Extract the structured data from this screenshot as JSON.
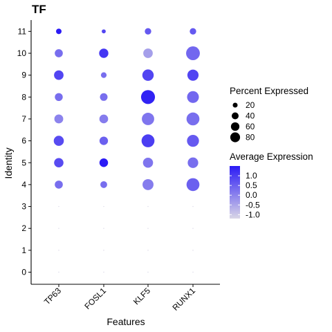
{
  "chart_data": {
    "type": "dotplot",
    "title": "TF",
    "xlabel": "Features",
    "ylabel": "Identity",
    "features": [
      "TP63",
      "FOSL1",
      "KLF5",
      "RUNX1"
    ],
    "identities": [
      "0",
      "1",
      "2",
      "3",
      "4",
      "5",
      "6",
      "7",
      "8",
      "9",
      "10",
      "11"
    ],
    "percent_expressed": [
      [
        1,
        1,
        2,
        1
      ],
      [
        1,
        1,
        2,
        1
      ],
      [
        1,
        1,
        2,
        1
      ],
      [
        1,
        1,
        2,
        1
      ],
      [
        28,
        20,
        52,
        72
      ],
      [
        38,
        32,
        44,
        48
      ],
      [
        44,
        31,
        72,
        62
      ],
      [
        34,
        33,
        66,
        72
      ],
      [
        27,
        25,
        84,
        60
      ],
      [
        39,
        14,
        56,
        54
      ],
      [
        28,
        37,
        39,
        82
      ],
      [
        13,
        7,
        18,
        18
      ]
    ],
    "average_expression": [
      [
        -1.2,
        -1.2,
        -1.2,
        -1.2
      ],
      [
        -1.2,
        -1.2,
        -1.2,
        -1.2
      ],
      [
        -1.2,
        -1.2,
        -1.2,
        -1.2
      ],
      [
        -1.2,
        -1.2,
        -1.2,
        -1.2
      ],
      [
        0.3,
        0.3,
        0.1,
        0.5
      ],
      [
        0.8,
        1.5,
        0.2,
        0.3
      ],
      [
        0.8,
        0.5,
        1.0,
        0.6
      ],
      [
        0.0,
        0.1,
        0.2,
        0.3
      ],
      [
        0.3,
        0.3,
        1.4,
        0.4
      ],
      [
        0.9,
        0.3,
        0.9,
        0.9
      ],
      [
        0.3,
        1.1,
        -0.4,
        0.4
      ],
      [
        1.5,
        0.9,
        0.6,
        0.6
      ]
    ],
    "size_legend": {
      "title": "Percent Expressed",
      "values": [
        20,
        40,
        60,
        80
      ]
    },
    "color_legend": {
      "title": "Average Expression",
      "ticks": [
        1.0,
        0.5,
        0.0,
        -0.5,
        -1.0
      ],
      "tick_labels": [
        "1.0",
        "0.5",
        "0.0",
        "-0.5",
        "-1.0"
      ],
      "range": [
        -1.2,
        1.5
      ],
      "low_color": "#d9d6e6",
      "high_color": "#2b1bf5"
    },
    "ylim": [
      -0.6,
      11.6
    ],
    "grid": false,
    "legend_position": "right"
  }
}
